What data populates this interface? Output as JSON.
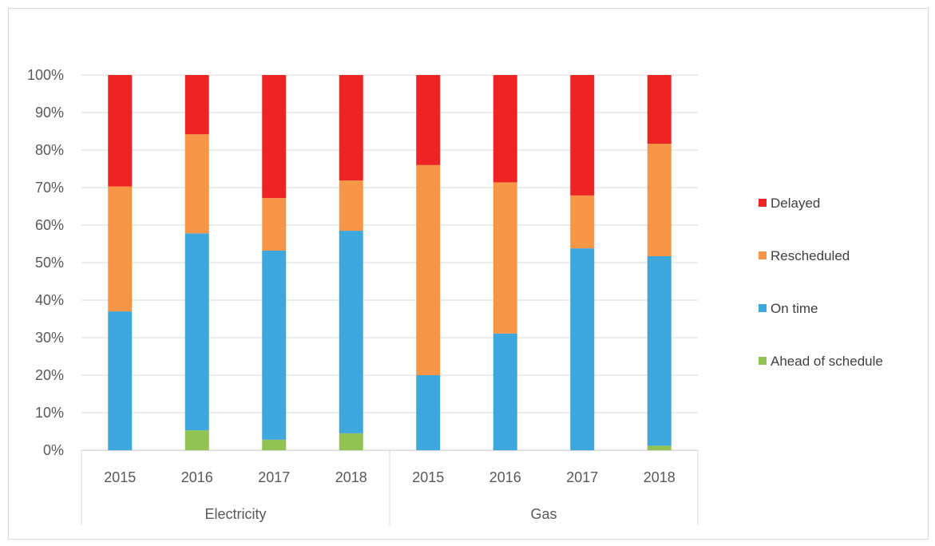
{
  "chart_data": {
    "type": "bar",
    "stacked": true,
    "percent": true,
    "title": "",
    "xlabel": "",
    "ylabel": "",
    "ylim": [
      0,
      100
    ],
    "y_ticks": [
      "0%",
      "10%",
      "20%",
      "30%",
      "40%",
      "50%",
      "60%",
      "70%",
      "80%",
      "90%",
      "100%"
    ],
    "grid": true,
    "legend_position": "right",
    "groups": [
      {
        "name": "Electricity",
        "categories": [
          "2015",
          "2016",
          "2017",
          "2018"
        ]
      },
      {
        "name": "Gas",
        "categories": [
          "2015",
          "2016",
          "2017",
          "2018"
        ]
      }
    ],
    "series": [
      {
        "name": "Ahead of schedule",
        "color": "#92c352",
        "values": [
          0,
          5.3,
          2.8,
          4.5,
          0,
          0,
          0,
          1.2
        ]
      },
      {
        "name": "On time",
        "color": "#3da7de",
        "values": [
          37.0,
          52.5,
          50.4,
          54.0,
          20.0,
          31.1,
          53.8,
          50.5
        ]
      },
      {
        "name": "Rescheduled",
        "color": "#f79646",
        "values": [
          33.3,
          26.4,
          14.0,
          13.4,
          56.0,
          40.3,
          14.1,
          30.0
        ]
      },
      {
        "name": "Delayed",
        "color": "#ee2324",
        "values": [
          29.7,
          15.8,
          32.8,
          28.1,
          24.0,
          28.6,
          32.1,
          18.3
        ]
      }
    ]
  }
}
